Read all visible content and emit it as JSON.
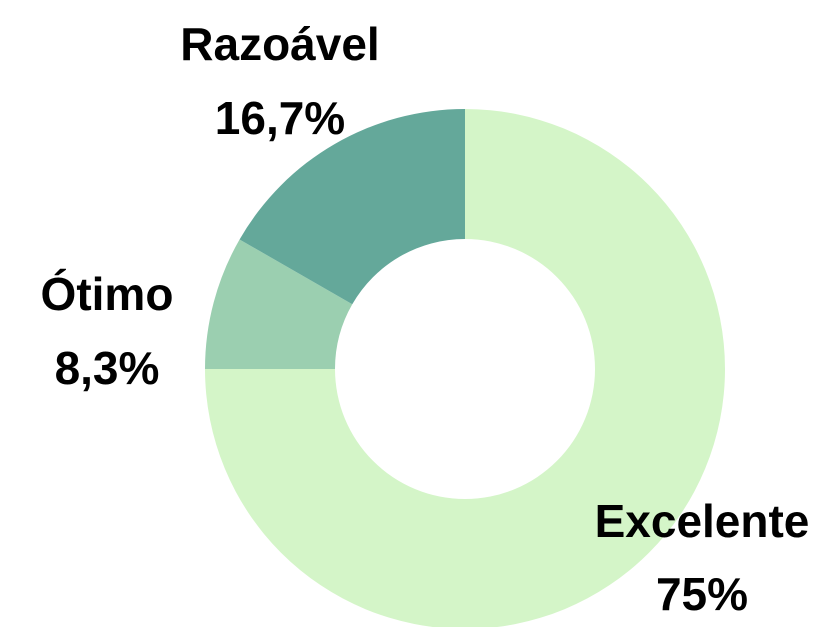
{
  "chart_data": {
    "type": "donut",
    "categories": [
      "Excelente",
      "Ótimo",
      "Razoável"
    ],
    "values": [
      75,
      8.3,
      16.7
    ],
    "value_labels": [
      "75%",
      "8,3%",
      "16,7%"
    ],
    "colors": [
      "#d4f5c8",
      "#9bcfb0",
      "#64a89a"
    ]
  }
}
